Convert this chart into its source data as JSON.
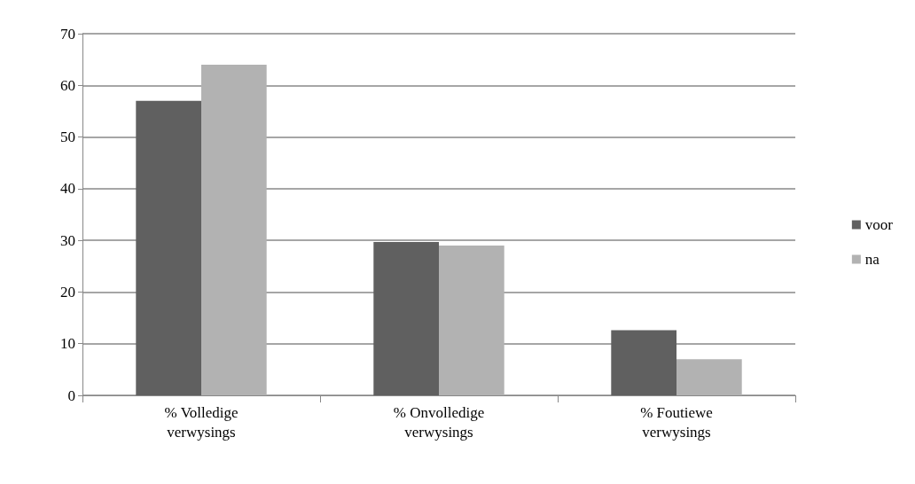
{
  "chart_data": {
    "type": "bar",
    "categories": [
      "% Volledige\nverwysings",
      "% Onvolledige\nverwysings",
      "% Foutiewe\nverwysings"
    ],
    "series": [
      {
        "name": "voor",
        "color": "#606060",
        "values": [
          57,
          29.7,
          12.6
        ]
      },
      {
        "name": "na",
        "color": "#b2b2b2",
        "values": [
          64,
          29,
          7
        ]
      }
    ],
    "ylim": [
      0,
      70
    ],
    "yticks": [
      0,
      10,
      20,
      30,
      40,
      50,
      60,
      70
    ],
    "grid": "y",
    "legend": "right"
  }
}
